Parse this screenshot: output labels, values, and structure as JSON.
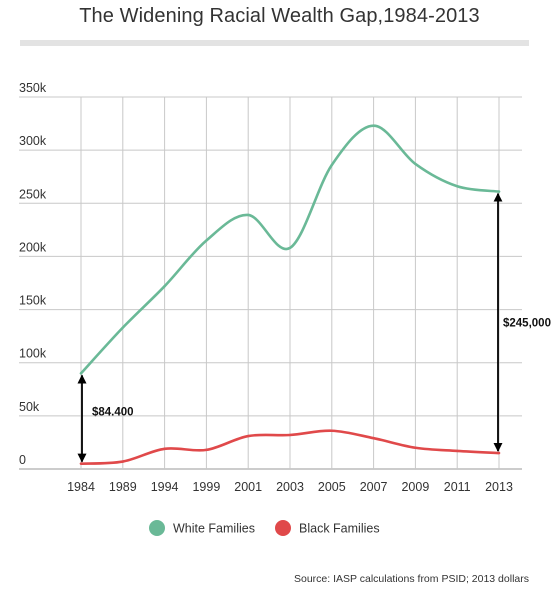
{
  "chart": {
    "title": "The Widening Racial Wealth Gap,1984-2013",
    "source": "Source: IASP calculations from PSID; 2013 dollars"
  },
  "chart_data": {
    "type": "line",
    "title": "The Widening Racial Wealth Gap,1984-2013",
    "xlabel": "",
    "ylabel": "",
    "categories": [
      "1984",
      "1989",
      "1994",
      "1999",
      "2001",
      "2003",
      "2005",
      "2007",
      "2009",
      "2011",
      "2013"
    ],
    "y_tick_labels": [
      "0",
      "50k",
      "100k",
      "150k",
      "200k",
      "250k",
      "300k",
      "350k"
    ],
    "ylim": [
      0,
      350000
    ],
    "grid": true,
    "legend_position": "bottom",
    "series": [
      {
        "name": "White Families",
        "color": "#6ab997",
        "values": [
          90000,
          133000,
          172000,
          215000,
          239000,
          208000,
          286000,
          323000,
          287000,
          266000,
          261000
        ]
      },
      {
        "name": "Black Families",
        "color": "#e0494a",
        "values": [
          5000,
          7000,
          19000,
          18000,
          31000,
          32000,
          36000,
          29000,
          20000,
          17000,
          15000
        ]
      }
    ],
    "annotations": [
      {
        "label": "$84.400",
        "category": "1984",
        "from": 5000,
        "to": 90000
      },
      {
        "label": "$245,000",
        "category": "2013",
        "from": 15000,
        "to": 261000
      }
    ]
  }
}
